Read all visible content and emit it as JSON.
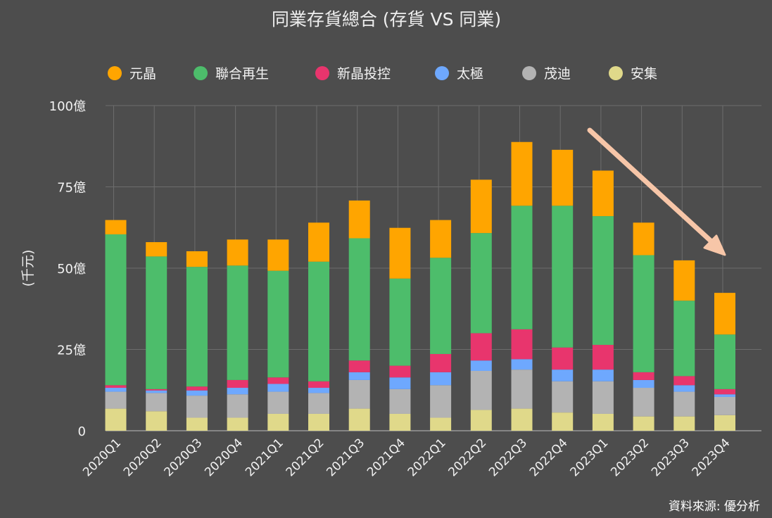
{
  "chart_data": {
    "type": "bar",
    "stacked": true,
    "title": "同業存貨總合 (存貨 VS 同業)",
    "ylabel": "(千元)",
    "xlabel": "",
    "source": "資料來源: 優分析",
    "ylim": [
      0,
      100
    ],
    "y_ticks": [
      {
        "value": 0,
        "label": "0"
      },
      {
        "value": 25,
        "label": "25億"
      },
      {
        "value": 50,
        "label": "50億"
      },
      {
        "value": 75,
        "label": "75億"
      },
      {
        "value": 100,
        "label": "100億"
      }
    ],
    "grid": true,
    "legend_position": "top",
    "categories": [
      "2020Q1",
      "2020Q2",
      "2020Q3",
      "2020Q4",
      "2021Q1",
      "2021Q2",
      "2021Q3",
      "2021Q4",
      "2022Q1",
      "2022Q2",
      "2022Q3",
      "2022Q4",
      "2023Q1",
      "2023Q2",
      "2023Q3",
      "2023Q4"
    ],
    "series": [
      {
        "name": "安集",
        "color": "#e0d98a",
        "values": [
          6.8,
          6.0,
          4.0,
          4.0,
          5.2,
          5.2,
          6.8,
          5.2,
          4.0,
          6.4,
          6.8,
          5.6,
          5.2,
          4.4,
          4.4,
          4.8
        ]
      },
      {
        "name": "茂迪",
        "color": "#b3b3b3",
        "values": [
          5.2,
          5.6,
          6.8,
          7.2,
          6.8,
          6.4,
          8.8,
          7.6,
          10.0,
          12.0,
          12.0,
          9.6,
          10.0,
          8.8,
          7.6,
          5.6
        ]
      },
      {
        "name": "太極",
        "color": "#6ea8fe",
        "values": [
          1.2,
          0.8,
          1.6,
          2.0,
          2.4,
          1.6,
          2.4,
          3.6,
          4.0,
          3.2,
          3.2,
          3.6,
          3.6,
          2.4,
          2.0,
          0.8
        ]
      },
      {
        "name": "新晶投控",
        "color": "#e8356d",
        "values": [
          0.8,
          0.4,
          1.2,
          2.4,
          2.0,
          2.0,
          3.6,
          3.6,
          5.6,
          8.4,
          9.2,
          6.8,
          7.6,
          2.4,
          2.8,
          1.6
        ]
      },
      {
        "name": "聯合再生",
        "color": "#4dbd6b",
        "values": [
          46.4,
          40.8,
          36.8,
          35.2,
          32.8,
          36.8,
          37.6,
          26.8,
          29.6,
          30.8,
          38.0,
          43.6,
          39.6,
          36.0,
          23.2,
          16.8
        ]
      },
      {
        "name": "元晶",
        "color": "#ffa500",
        "values": [
          4.4,
          4.4,
          4.8,
          8.0,
          9.6,
          12.0,
          11.6,
          15.6,
          11.6,
          16.4,
          19.6,
          17.2,
          14.0,
          10.0,
          12.4,
          12.8
        ]
      }
    ],
    "legend_order": [
      "元晶",
      "聯合再生",
      "新晶投控",
      "太極",
      "茂迪",
      "安集"
    ],
    "annotation": {
      "type": "arrow",
      "direction": "down-right",
      "color": "#f7c6a8",
      "meaning": "declining trend"
    }
  }
}
